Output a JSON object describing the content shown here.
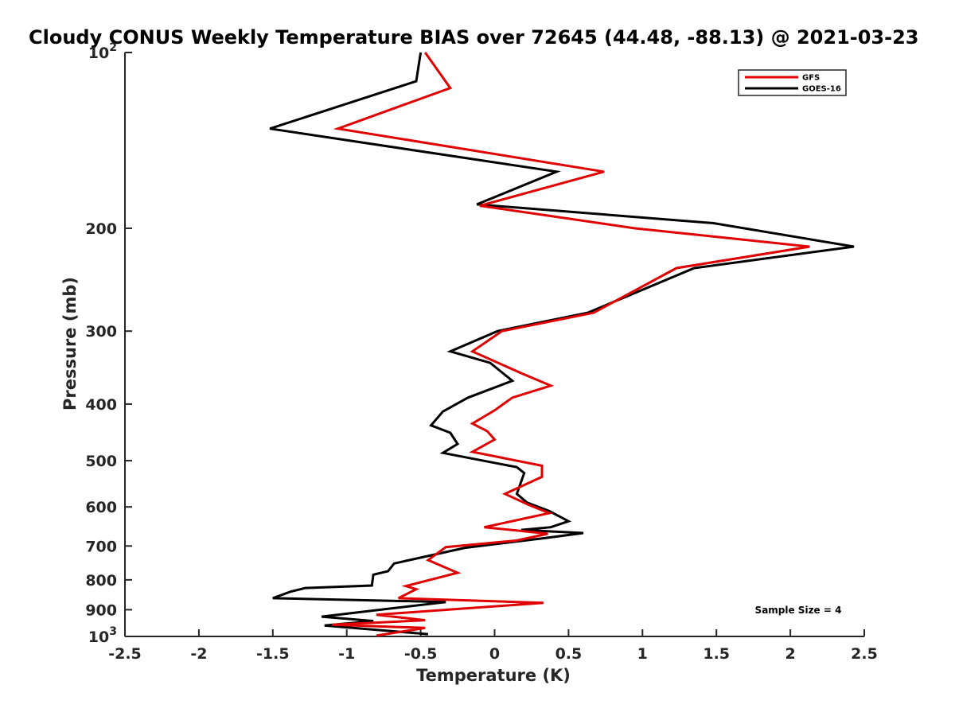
{
  "chart_data": {
    "type": "line",
    "title": "Cloudy CONUS Weekly Temperature BIAS over 72645 (44.48, -88.13) @ 2021-03-23",
    "xlabel": "Temperature (K)",
    "ylabel": "Pressure (mb)",
    "xlim": [
      -2.5,
      2.5
    ],
    "ylim": [
      100,
      1000
    ],
    "y_scale": "log",
    "y_reversed": true,
    "grid": false,
    "legend_position": "top-right",
    "x_ticks": [
      -2.5,
      -2,
      -1.5,
      -1,
      -0.5,
      0,
      0.5,
      1,
      1.5,
      2,
      2.5
    ],
    "x_tick_labels": [
      "-2.5",
      "-2",
      "-1.5",
      "-1",
      "-0.5",
      "0",
      "0.5",
      "1",
      "1.5",
      "2",
      "2.5"
    ],
    "y_ticks": [
      100,
      200,
      300,
      400,
      500,
      600,
      700,
      800,
      900,
      1000
    ],
    "y_tick_labels": [
      {
        "base": "10",
        "exp": "2"
      },
      {
        "base": "200",
        "exp": ""
      },
      {
        "base": "300",
        "exp": ""
      },
      {
        "base": "400",
        "exp": ""
      },
      {
        "base": "500",
        "exp": ""
      },
      {
        "base": "600",
        "exp": ""
      },
      {
        "base": "700",
        "exp": ""
      },
      {
        "base": "800",
        "exp": ""
      },
      {
        "base": "900",
        "exp": ""
      },
      {
        "base": "10",
        "exp": "3"
      }
    ],
    "annotation": "Sample Size = 4",
    "series": [
      {
        "name": "GFS",
        "color": "#e00000",
        "points": [
          [
            -0.47,
            100
          ],
          [
            -0.3,
            115
          ],
          [
            -1.06,
            135
          ],
          [
            0.74,
            160
          ],
          [
            -0.1,
            183
          ],
          [
            0.95,
            200
          ],
          [
            2.13,
            215
          ],
          [
            1.23,
            234
          ],
          [
            0.67,
            279
          ],
          [
            0.05,
            300
          ],
          [
            -0.15,
            325
          ],
          [
            0.19,
            355
          ],
          [
            0.38,
            372
          ],
          [
            0.12,
            390
          ],
          [
            0.0,
            410
          ],
          [
            -0.15,
            432
          ],
          [
            -0.05,
            445
          ],
          [
            0.0,
            460
          ],
          [
            -0.15,
            483
          ],
          [
            0.32,
            510
          ],
          [
            0.32,
            533
          ],
          [
            0.07,
            570
          ],
          [
            0.23,
            595
          ],
          [
            0.37,
            615
          ],
          [
            -0.07,
            650
          ],
          [
            0.36,
            667
          ],
          [
            0.15,
            685
          ],
          [
            -0.33,
            703
          ],
          [
            -0.45,
            740
          ],
          [
            -0.25,
            778
          ],
          [
            -0.6,
            820
          ],
          [
            -0.53,
            830
          ],
          [
            -0.65,
            860
          ],
          [
            0.33,
            876
          ],
          [
            -0.8,
            918
          ],
          [
            -0.47,
            938
          ],
          [
            -1.1,
            955
          ],
          [
            -0.47,
            967
          ],
          [
            -0.8,
            997
          ]
        ]
      },
      {
        "name": "GOES-16",
        "color": "#000000",
        "points": [
          [
            -0.5,
            100
          ],
          [
            -0.53,
            112
          ],
          [
            -1.52,
            135
          ],
          [
            0.42,
            160
          ],
          [
            -0.12,
            182
          ],
          [
            1.48,
            196
          ],
          [
            2.43,
            215
          ],
          [
            1.35,
            234
          ],
          [
            0.63,
            279
          ],
          [
            0.02,
            300
          ],
          [
            -0.3,
            325
          ],
          [
            -0.03,
            340
          ],
          [
            0.12,
            365
          ],
          [
            -0.18,
            390
          ],
          [
            -0.35,
            412
          ],
          [
            -0.43,
            435
          ],
          [
            -0.3,
            448
          ],
          [
            -0.25,
            468
          ],
          [
            -0.35,
            485
          ],
          [
            0.15,
            513
          ],
          [
            0.2,
            525
          ],
          [
            0.15,
            570
          ],
          [
            0.22,
            590
          ],
          [
            0.37,
            610
          ],
          [
            0.5,
            635
          ],
          [
            0.38,
            650
          ],
          [
            0.18,
            657
          ],
          [
            0.6,
            665
          ],
          [
            0.35,
            678
          ],
          [
            -0.2,
            705
          ],
          [
            -0.68,
            750
          ],
          [
            -0.72,
            773
          ],
          [
            -0.82,
            784
          ],
          [
            -0.83,
            818
          ],
          [
            -1.28,
            826
          ],
          [
            -1.38,
            838
          ],
          [
            -1.5,
            860
          ],
          [
            -0.33,
            873
          ],
          [
            -1.17,
            925
          ],
          [
            -0.82,
            941
          ],
          [
            -1.15,
            958
          ],
          [
            -0.45,
            991
          ]
        ]
      }
    ]
  }
}
